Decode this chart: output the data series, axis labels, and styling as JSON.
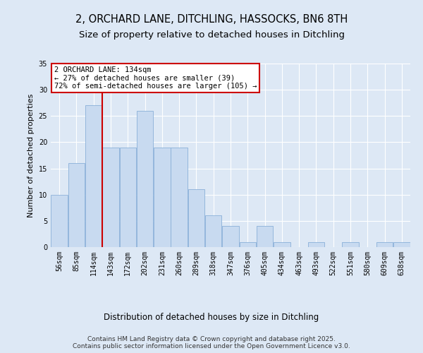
{
  "title": "2, ORCHARD LANE, DITCHLING, HASSOCKS, BN6 8TH",
  "subtitle": "Size of property relative to detached houses in Ditchling",
  "xlabel": "Distribution of detached houses by size in Ditchling",
  "ylabel": "Number of detached properties",
  "categories": [
    "56sqm",
    "85sqm",
    "114sqm",
    "143sqm",
    "172sqm",
    "202sqm",
    "231sqm",
    "260sqm",
    "289sqm",
    "318sqm",
    "347sqm",
    "376sqm",
    "405sqm",
    "434sqm",
    "463sqm",
    "493sqm",
    "522sqm",
    "551sqm",
    "580sqm",
    "609sqm",
    "638sqm"
  ],
  "values": [
    10,
    16,
    27,
    19,
    19,
    26,
    19,
    19,
    11,
    6,
    4,
    1,
    4,
    1,
    0,
    1,
    0,
    1,
    0,
    1,
    1
  ],
  "bar_color": "#c8daf0",
  "bar_edge_color": "#8ab0d8",
  "vline_color": "#cc0000",
  "vline_x": 2.5,
  "annotation_text": "2 ORCHARD LANE: 134sqm\n← 27% of detached houses are smaller (39)\n72% of semi-detached houses are larger (105) →",
  "annotation_box_color": "#cc0000",
  "background_color": "#dde8f5",
  "plot_background": "#dde8f5",
  "grid_color": "#ffffff",
  "ylim": [
    0,
    35
  ],
  "yticks": [
    0,
    5,
    10,
    15,
    20,
    25,
    30,
    35
  ],
  "footer": "Contains HM Land Registry data © Crown copyright and database right 2025.\nContains public sector information licensed under the Open Government Licence v3.0.",
  "title_fontsize": 10.5,
  "subtitle_fontsize": 9.5,
  "xlabel_fontsize": 8.5,
  "ylabel_fontsize": 8,
  "tick_fontsize": 7,
  "footer_fontsize": 6.5,
  "annotation_fontsize": 7.5
}
